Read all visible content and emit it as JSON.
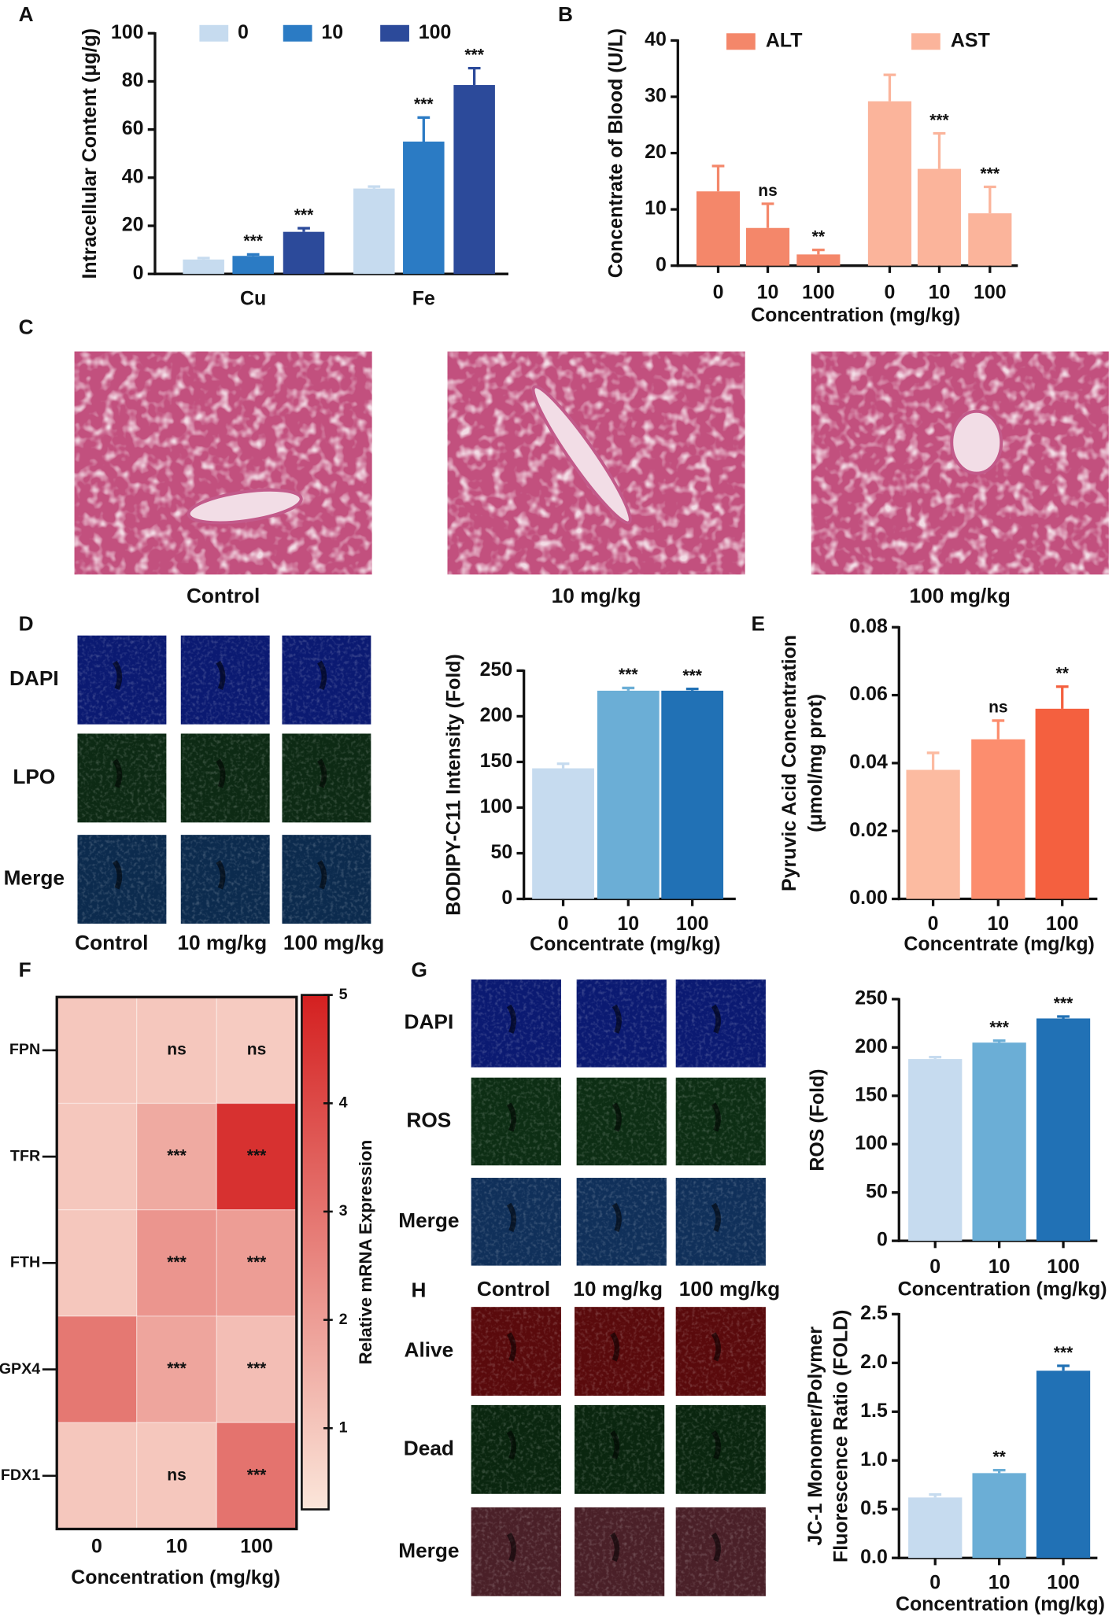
{
  "chart_data": [
    {
      "type": "bar",
      "panel": "A",
      "ylabel": "Intracellular Content (μg/g)",
      "categories": [
        "Cu",
        "Fe"
      ],
      "series": [
        {
          "name": "0",
          "color": "#c6dbef",
          "values": [
            6,
            35.5
          ],
          "errors": [
            0.6,
            0.8
          ],
          "sig": [
            null,
            null
          ]
        },
        {
          "name": "10",
          "color": "#2b7bc4",
          "values": [
            7.5,
            55
          ],
          "errors": [
            0.6,
            10
          ],
          "sig": [
            "***",
            "***"
          ]
        },
        {
          "name": "100",
          "color": "#2c4a9a",
          "values": [
            17.5,
            78.5
          ],
          "errors": [
            1.5,
            7
          ],
          "sig": [
            "***",
            "***"
          ]
        }
      ],
      "ylim": [
        0,
        100
      ],
      "yticks": [
        0,
        20,
        40,
        60,
        80,
        100
      ]
    },
    {
      "type": "bar",
      "panel": "B",
      "ylabel": "Concentrate of Blood (U/L)",
      "xlabel": "Concentration (mg/kg)",
      "categories": [
        "0",
        "10",
        "100"
      ],
      "series": [
        {
          "name": "ALT",
          "color": "#f4876a",
          "values": [
            13.2,
            6.7,
            2.0
          ],
          "errors": [
            4.5,
            4.3,
            0.8
          ],
          "sig": [
            null,
            "ns",
            "**"
          ]
        },
        {
          "name": "AST",
          "color": "#fbb49b",
          "values": [
            29.2,
            17.2,
            9.3
          ],
          "errors": [
            4.7,
            6.3,
            4.7
          ],
          "sig": [
            null,
            "***",
            "***"
          ]
        }
      ],
      "ylim": [
        0,
        40
      ],
      "yticks": [
        0,
        10,
        20,
        30,
        40
      ]
    },
    {
      "type": "bar",
      "panel": "D",
      "ylabel": "BODIPY-C11 Intensity (Fold)",
      "xlabel": "Concentrate (mg/kg)",
      "categories": [
        "0",
        "10",
        "100"
      ],
      "values": [
        143,
        228,
        228
      ],
      "errors": [
        5,
        3,
        2
      ],
      "colors": [
        "#c6dbef",
        "#6baed6",
        "#2171b5"
      ],
      "sig": [
        null,
        "***",
        "***"
      ],
      "ylim": [
        0,
        250
      ],
      "yticks": [
        0,
        50,
        100,
        150,
        200,
        250
      ]
    },
    {
      "type": "bar",
      "panel": "E",
      "ylabel": [
        "Pyruvic Acid Concentration",
        "(μmol/mg prot)"
      ],
      "xlabel": "Concentrate (mg/kg)",
      "categories": [
        "0",
        "10",
        "100"
      ],
      "values": [
        0.038,
        0.047,
        0.056
      ],
      "errors": [
        0.005,
        0.0055,
        0.0065
      ],
      "colors": [
        "#fcbba1",
        "#fc8d6e",
        "#f4603f"
      ],
      "sig": [
        null,
        "ns",
        "**"
      ],
      "ylim": [
        0,
        0.08
      ],
      "yticks": [
        {
          "value": 0,
          "label": "0.00"
        },
        {
          "value": 0.02,
          "label": "0.02"
        },
        {
          "value": 0.04,
          "label": "0.04"
        },
        {
          "value": 0.06,
          "label": "0.06"
        },
        {
          "value": 0.08,
          "label": "0.08"
        }
      ]
    },
    {
      "type": "heatmap",
      "panel": "F",
      "xlabel": "Concentration (mg/kg)",
      "colorbar_label": "Relative mRNA Expression",
      "rows": [
        "FPN",
        "TFR",
        "FTH",
        "GPX4",
        "FDX1"
      ],
      "columns": [
        "0",
        "10",
        "100"
      ],
      "values": [
        [
          1.0,
          1.0,
          0.9
        ],
        [
          1.0,
          1.7,
          4.6
        ],
        [
          1.0,
          2.2,
          2.0
        ],
        [
          2.9,
          1.8,
          1.2
        ],
        [
          1.0,
          1.0,
          3.0
        ]
      ],
      "sig": [
        [
          null,
          "ns",
          "ns"
        ],
        [
          null,
          "***",
          "***"
        ],
        [
          null,
          "***",
          "***"
        ],
        [
          null,
          "***",
          "***"
        ],
        [
          null,
          "ns",
          "***"
        ]
      ],
      "colormap": [
        "#fbe6da",
        "#d42020"
      ],
      "clim": [
        0.25,
        5
      ],
      "cticks": [
        1,
        2,
        3,
        4,
        5
      ]
    },
    {
      "type": "bar",
      "panel": "G",
      "ylabel": "ROS (Fold)",
      "xlabel": "Concentration (mg/kg)",
      "categories": [
        "0",
        "10",
        "100"
      ],
      "values": [
        188,
        205,
        230
      ],
      "errors": [
        2,
        2,
        2
      ],
      "colors": [
        "#c6dbef",
        "#6baed6",
        "#2171b5"
      ],
      "sig": [
        null,
        "***",
        "***"
      ],
      "ylim": [
        0,
        250
      ],
      "yticks": [
        0,
        50,
        100,
        150,
        200,
        250
      ]
    },
    {
      "type": "bar",
      "panel": "H",
      "ylabel": [
        "JC-1 Monomer/Polymer",
        "Fluorescence Ratio (FOLD)"
      ],
      "xlabel": "Concentration (mg/kg)",
      "categories": [
        "0",
        "10",
        "100"
      ],
      "values": [
        0.62,
        0.87,
        1.92
      ],
      "errors": [
        0.03,
        0.03,
        0.05
      ],
      "colors": [
        "#c6dbef",
        "#6baed6",
        "#2171b5"
      ],
      "sig": [
        null,
        "**",
        "***"
      ],
      "ylim": [
        0,
        2.5
      ],
      "yticks": [
        {
          "value": 0,
          "label": "0.0"
        },
        {
          "value": 0.5,
          "label": "0.5"
        },
        {
          "value": 1,
          "label": "1.0"
        },
        {
          "value": 1.5,
          "label": "1.5"
        },
        {
          "value": 2,
          "label": "2.0"
        },
        {
          "value": 2.5,
          "label": "2.5"
        }
      ]
    }
  ],
  "micrographs": [
    {
      "panel": "C",
      "columns": [
        "Control",
        "10 mg/kg",
        "100 mg/kg"
      ]
    },
    {
      "panel": "D",
      "rows": [
        "DAPI",
        "LPO",
        "Merge"
      ],
      "columns": [
        "Control",
        "10 mg/kg",
        "100 mg/kg"
      ],
      "row_colors": [
        "#2e5aa8",
        "#5a9a5a",
        [
          "#2e5aa8",
          "#5a9a5a"
        ]
      ]
    },
    {
      "panel": "G",
      "rows": [
        "DAPI",
        "ROS",
        "Merge"
      ],
      "row_colors": [
        "#2e5aa8",
        "#5a9a5a",
        [
          "#2e5aa8",
          "#5a9a5a"
        ]
      ]
    },
    {
      "panel": "H",
      "rows": [
        "Alive",
        "Dead",
        "Merge"
      ],
      "columns": [
        "Control",
        "10 mg/kg",
        "100 mg/kg"
      ],
      "row_colors": [
        "#e01010",
        "#5a9a5a",
        [
          "#e01010",
          "#5a9a5a"
        ]
      ]
    }
  ]
}
